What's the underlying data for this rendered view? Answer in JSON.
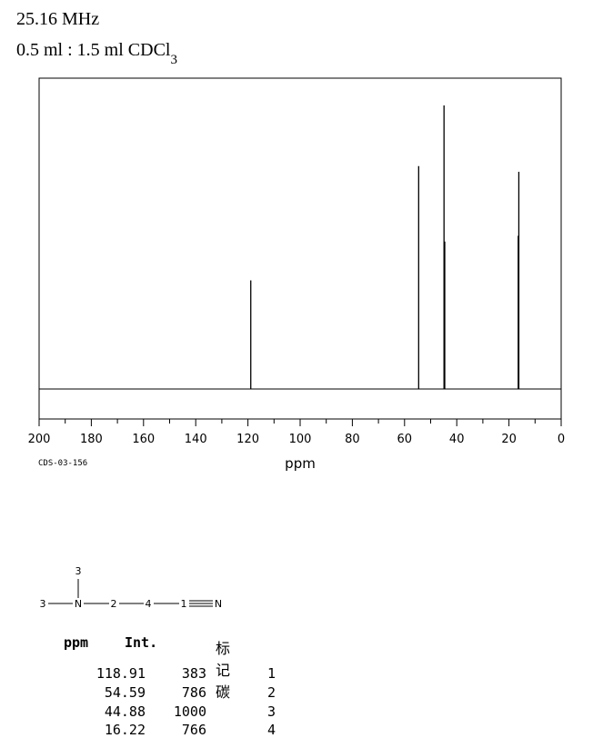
{
  "header": {
    "frequency": "25.16 MHz",
    "solvent_main": "0.5 ml : 1.5 ml CDCl",
    "solvent_sub": "3"
  },
  "spectrum_code": "CDS-03-156",
  "chart_data": {
    "type": "line",
    "xlabel": "ppm",
    "xlim": [
      200,
      0
    ],
    "x_ticks": [
      200,
      180,
      160,
      140,
      120,
      100,
      80,
      60,
      40,
      20,
      0
    ],
    "grid": false,
    "peaks": [
      {
        "ppm": 118.91,
        "intensity": 383
      },
      {
        "ppm": 54.59,
        "intensity": 786
      },
      {
        "ppm": 44.88,
        "intensity": 1000
      },
      {
        "ppm": 44.6,
        "intensity": 520
      },
      {
        "ppm": 16.22,
        "intensity": 766
      },
      {
        "ppm": 16.45,
        "intensity": 540
      }
    ]
  },
  "structure": {
    "atoms": [
      "3",
      "3",
      "N",
      "2",
      "4",
      "1",
      "N"
    ]
  },
  "table": {
    "headers": [
      "ppm",
      "Int.",
      "标记碳"
    ],
    "rows": [
      [
        "118.91",
        "383",
        "1"
      ],
      [
        "54.59",
        "786",
        "2"
      ],
      [
        "44.88",
        "1000",
        "3"
      ],
      [
        "16.22",
        "766",
        "4"
      ]
    ]
  }
}
